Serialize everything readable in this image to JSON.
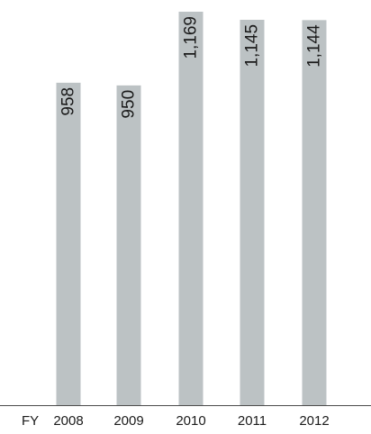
{
  "chart_data": {
    "type": "bar",
    "axis_prefix": "FY",
    "categories": [
      "2008",
      "2009",
      "2010",
      "2011",
      "2012"
    ],
    "values": [
      958,
      950,
      1169,
      1145,
      1144
    ],
    "value_labels": [
      "958",
      "950",
      "1,169",
      "1,145",
      "1,144"
    ],
    "ylim": [
      0,
      1169
    ],
    "grid": false,
    "colors": {
      "bar": "#bcc2c4",
      "axis": "#4a4a4a",
      "text": "#1a1a1a"
    }
  }
}
